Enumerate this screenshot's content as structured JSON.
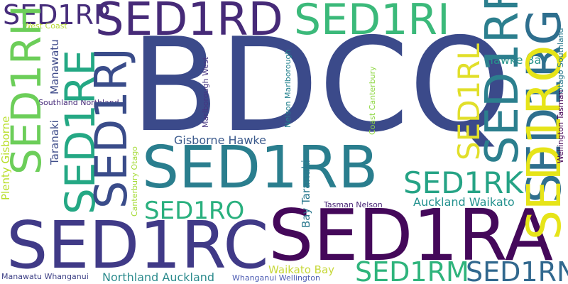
{
  "words": [
    {
      "text": "BDCQ",
      "color": "#3b4a8a"
    },
    {
      "text": "SED1RB",
      "color": "#2a7e8e"
    },
    {
      "text": "SED1RA",
      "color": "#44085a"
    },
    {
      "text": "SED1RC",
      "color": "#403a87"
    },
    {
      "text": "SED1RD",
      "color": "#462a78"
    },
    {
      "text": "SED1RI",
      "color": "#3bb97a"
    },
    {
      "text": "SED1RP",
      "color": "#472d7b"
    },
    {
      "text": "SED1RH",
      "color": "#6cce59"
    },
    {
      "text": "SED1RE",
      "color": "#24a884"
    },
    {
      "text": "SED1RJ",
      "color": "#3a4c8a"
    },
    {
      "text": "SED1RF",
      "color": "#2c7f8e"
    },
    {
      "text": "SED1RG",
      "color": "#2e6f8e"
    },
    {
      "text": "SED1RL",
      "color": "#e1df2a"
    },
    {
      "text": "SED1RK",
      "color": "#25a385"
    },
    {
      "text": "SED1RO",
      "color": "#2ab07e"
    },
    {
      "text": "SED1RM",
      "color": "#2fb47c"
    },
    {
      "text": "SED1RN",
      "color": "#31688e"
    },
    {
      "text": "SED1RQ",
      "color": "#e6e419"
    },
    {
      "text": "Hawke Bay",
      "color": "#26938a"
    },
    {
      "text": "Gisborne Hawke",
      "color": "#3b5a8c"
    },
    {
      "text": "Auckland Waikato",
      "color": "#21908d"
    },
    {
      "text": "Northland Auckland",
      "color": "#2c8b8d"
    },
    {
      "text": "Waikato Bay",
      "color": "#c7d83a"
    },
    {
      "text": "Manawatu Whanganui",
      "color": "#404387"
    },
    {
      "text": "Whanganui Wellington",
      "color": "#4d5cb3"
    },
    {
      "text": "West Coast",
      "color": "#b5d932"
    },
    {
      "text": "Southland Northland",
      "color": "#472c7a"
    },
    {
      "text": "Tasman Nelson",
      "color": "#482576"
    },
    {
      "text": "Taranaki",
      "color": "#3f4d8a"
    },
    {
      "text": "Manawatu",
      "color": "#3e4a89"
    },
    {
      "text": "Plenty Gisborne",
      "color": "#b8de29"
    },
    {
      "text": "Canterbury Otago",
      "color": "#a5db36"
    },
    {
      "text": "Marlborough West",
      "color": "#463480"
    },
    {
      "text": "Nelson Marlborough",
      "color": "#25828e"
    },
    {
      "text": "Coast Canterbury",
      "color": "#8fd744"
    },
    {
      "text": "Bay Taranaki",
      "color": "#2a788e"
    },
    {
      "text": "Otago Southland",
      "color": "#29798e"
    },
    {
      "text": "Wellington Tasman",
      "color": "#440154"
    }
  ]
}
